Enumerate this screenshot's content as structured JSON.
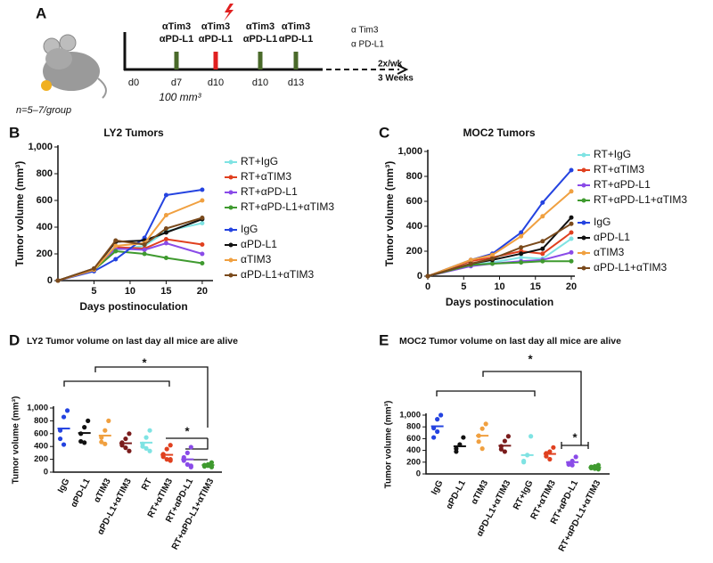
{
  "panel_a": {
    "label": "A",
    "n_label": "n=5–7/group",
    "treatments": [
      {
        "line1": "αTim3",
        "line2": "αPD-L1"
      },
      {
        "line1": "αTim3",
        "line2": "αPD-L1"
      },
      {
        "line1": "αTim3",
        "line2": "αPD-L1"
      },
      {
        "line1": "αTim3",
        "line2": "αPD-L1"
      }
    ],
    "days": [
      "d0",
      "d7",
      "d10",
      "d10",
      "d13"
    ],
    "volume": "100 mm³",
    "followup": [
      "α Tim3",
      "α PD-L1"
    ],
    "schedule": [
      "2x/wk",
      "3 Weeks"
    ]
  },
  "chart_data": [
    {
      "type": "line",
      "panel": "B",
      "title": "LY2 Tumors",
      "x_label": "Days postinoculation",
      "y_label": "Tumor volume (mm³)",
      "x": [
        0,
        5,
        8,
        12,
        15,
        20
      ],
      "xlim": [
        0,
        21
      ],
      "xticks": [
        5,
        10,
        15,
        20
      ],
      "ylim": [
        0,
        1000
      ],
      "yticks": [
        0,
        200,
        400,
        600,
        800,
        {
          "value": 1000,
          "label": "1,000"
        }
      ],
      "series": [
        {
          "name": "RT+IgG",
          "color": "#7fe3e3",
          "values": [
            0,
            80,
            230,
            260,
            370,
            430
          ]
        },
        {
          "name": "RT+αTIM3",
          "color": "#e0401f",
          "values": [
            0,
            80,
            250,
            240,
            310,
            270
          ]
        },
        {
          "name": "RT+αPD-L1",
          "color": "#8a4be8",
          "values": [
            0,
            80,
            240,
            230,
            280,
            200
          ]
        },
        {
          "name": "RT+αPD-L1+αTIM3",
          "color": "#3f9a2f",
          "values": [
            0,
            80,
            220,
            200,
            170,
            130
          ]
        },
        {
          "name": "IgG",
          "color": "#2443e0",
          "values": [
            0,
            70,
            160,
            320,
            640,
            680
          ]
        },
        {
          "name": "αPD-L1",
          "color": "#111111",
          "values": [
            0,
            90,
            290,
            300,
            360,
            460
          ]
        },
        {
          "name": "αTIM3",
          "color": "#f0a040",
          "values": [
            0,
            80,
            260,
            280,
            490,
            600
          ]
        },
        {
          "name": "αPD-L1+αTIM3",
          "color": "#7a4a1c",
          "values": [
            0,
            90,
            300,
            270,
            390,
            470
          ]
        }
      ]
    },
    {
      "type": "line",
      "panel": "C",
      "title": "MOC2 Tumors",
      "x_label": "Days postinoculation",
      "y_label": "Tumor volume (mm³)",
      "x": [
        0,
        6,
        9,
        13,
        16,
        20
      ],
      "xlim": [
        0,
        20
      ],
      "xticks": [
        0,
        5,
        10,
        15,
        20
      ],
      "ylim": [
        0,
        1000
      ],
      "yticks": [
        0,
        200,
        400,
        600,
        800,
        {
          "value": 1000,
          "label": "1,000"
        }
      ],
      "series": [
        {
          "name": "RT+IgG",
          "color": "#7fe3e3",
          "values": [
            0,
            90,
            110,
            150,
            140,
            300
          ]
        },
        {
          "name": "RT+αTIM3",
          "color": "#e0401f",
          "values": [
            0,
            120,
            150,
            200,
            180,
            350
          ]
        },
        {
          "name": "RT+αPD-L1",
          "color": "#8a4be8",
          "values": [
            0,
            80,
            100,
            120,
            130,
            190
          ]
        },
        {
          "name": "RT+αPD-L1+αTIM3",
          "color": "#3f9a2f",
          "values": [
            0,
            90,
            100,
            110,
            120,
            120
          ]
        },
        {
          "name": "IgG",
          "color": "#2443e0",
          "values": [
            0,
            130,
            180,
            350,
            590,
            850
          ]
        },
        {
          "name": "αPD-L1",
          "color": "#111111",
          "values": [
            0,
            100,
            130,
            180,
            220,
            470
          ]
        },
        {
          "name": "αTIM3",
          "color": "#f0a040",
          "values": [
            0,
            130,
            170,
            320,
            480,
            680
          ]
        },
        {
          "name": "αPD-L1+αTIM3",
          "color": "#7a4a1c",
          "values": [
            0,
            100,
            140,
            230,
            280,
            420
          ]
        }
      ]
    },
    {
      "type": "dot",
      "panel": "D",
      "title": "LY2 Tumor volume on last day all mice are alive",
      "y_label": "Tumor volume (mm³)",
      "annotations": [
        "*",
        "*"
      ],
      "ylim": [
        0,
        1000
      ],
      "yticks": [
        0,
        200,
        400,
        600,
        800,
        {
          "value": 1000,
          "label": "1,000"
        }
      ],
      "categories": [
        "IgG",
        "αPD-L1",
        "αTIM3",
        "αPD-L1+αTIM3",
        "RT",
        "RT+αTIM3",
        "RT+αPD-L1",
        "RT+αPD-L1+αTIM3"
      ],
      "colors": [
        "#2443e0",
        "#111111",
        "#f0a040",
        "#7a1c1c",
        "#7fe3e3",
        "#e0401f",
        "#8a4be8",
        "#3f9a2f"
      ],
      "values": [
        680,
        610,
        570,
        450,
        460,
        270,
        200,
        110
      ],
      "points": [
        [
          960,
          860,
          650,
          520,
          430
        ],
        [
          800,
          700,
          600,
          480,
          460
        ],
        [
          800,
          650,
          540,
          470,
          440
        ],
        [
          600,
          520,
          460,
          420,
          380,
          330
        ],
        [
          650,
          540,
          440,
          400,
          370,
          330
        ],
        [
          420,
          360,
          280,
          240,
          200,
          180,
          200
        ],
        [
          390,
          300,
          230,
          180,
          120,
          80,
          100
        ],
        [
          150,
          120,
          110,
          90,
          100,
          80
        ]
      ]
    },
    {
      "type": "dot",
      "panel": "E",
      "title": "MOC2 Tumor volume on last day all mice are alive",
      "y_label": "Tumor volume (mm³)",
      "annotations": [
        "*",
        "*"
      ],
      "ylim": [
        0,
        1000
      ],
      "yticks": [
        0,
        200,
        400,
        600,
        800,
        {
          "value": 1000,
          "label": "1,000"
        }
      ],
      "categories": [
        "IgG",
        "αPD-L1",
        "αTIM3",
        "αPD-L1+αTIM3",
        "RT+IgG",
        "RT+αTIM3",
        "RT+αPD-L1",
        "RT+αPD-L1+αTIM3"
      ],
      "colors": [
        "#2443e0",
        "#111111",
        "#f0a040",
        "#7a1c1c",
        "#7fe3e3",
        "#e0401f",
        "#8a4be8",
        "#3f9a2f"
      ],
      "values": [
        810,
        470,
        650,
        480,
        320,
        340,
        200,
        110
      ],
      "points": [
        [
          1000,
          930,
          780,
          620,
          720
        ],
        [
          620,
          500,
          430,
          380
        ],
        [
          850,
          770,
          650,
          550,
          430
        ],
        [
          640,
          560,
          470,
          420,
          380
        ],
        [
          640,
          320,
          220,
          200
        ],
        [
          450,
          380,
          350,
          300,
          250
        ],
        [
          290,
          220,
          180,
          160,
          150
        ],
        [
          150,
          130,
          120,
          100,
          90,
          80
        ]
      ]
    }
  ]
}
